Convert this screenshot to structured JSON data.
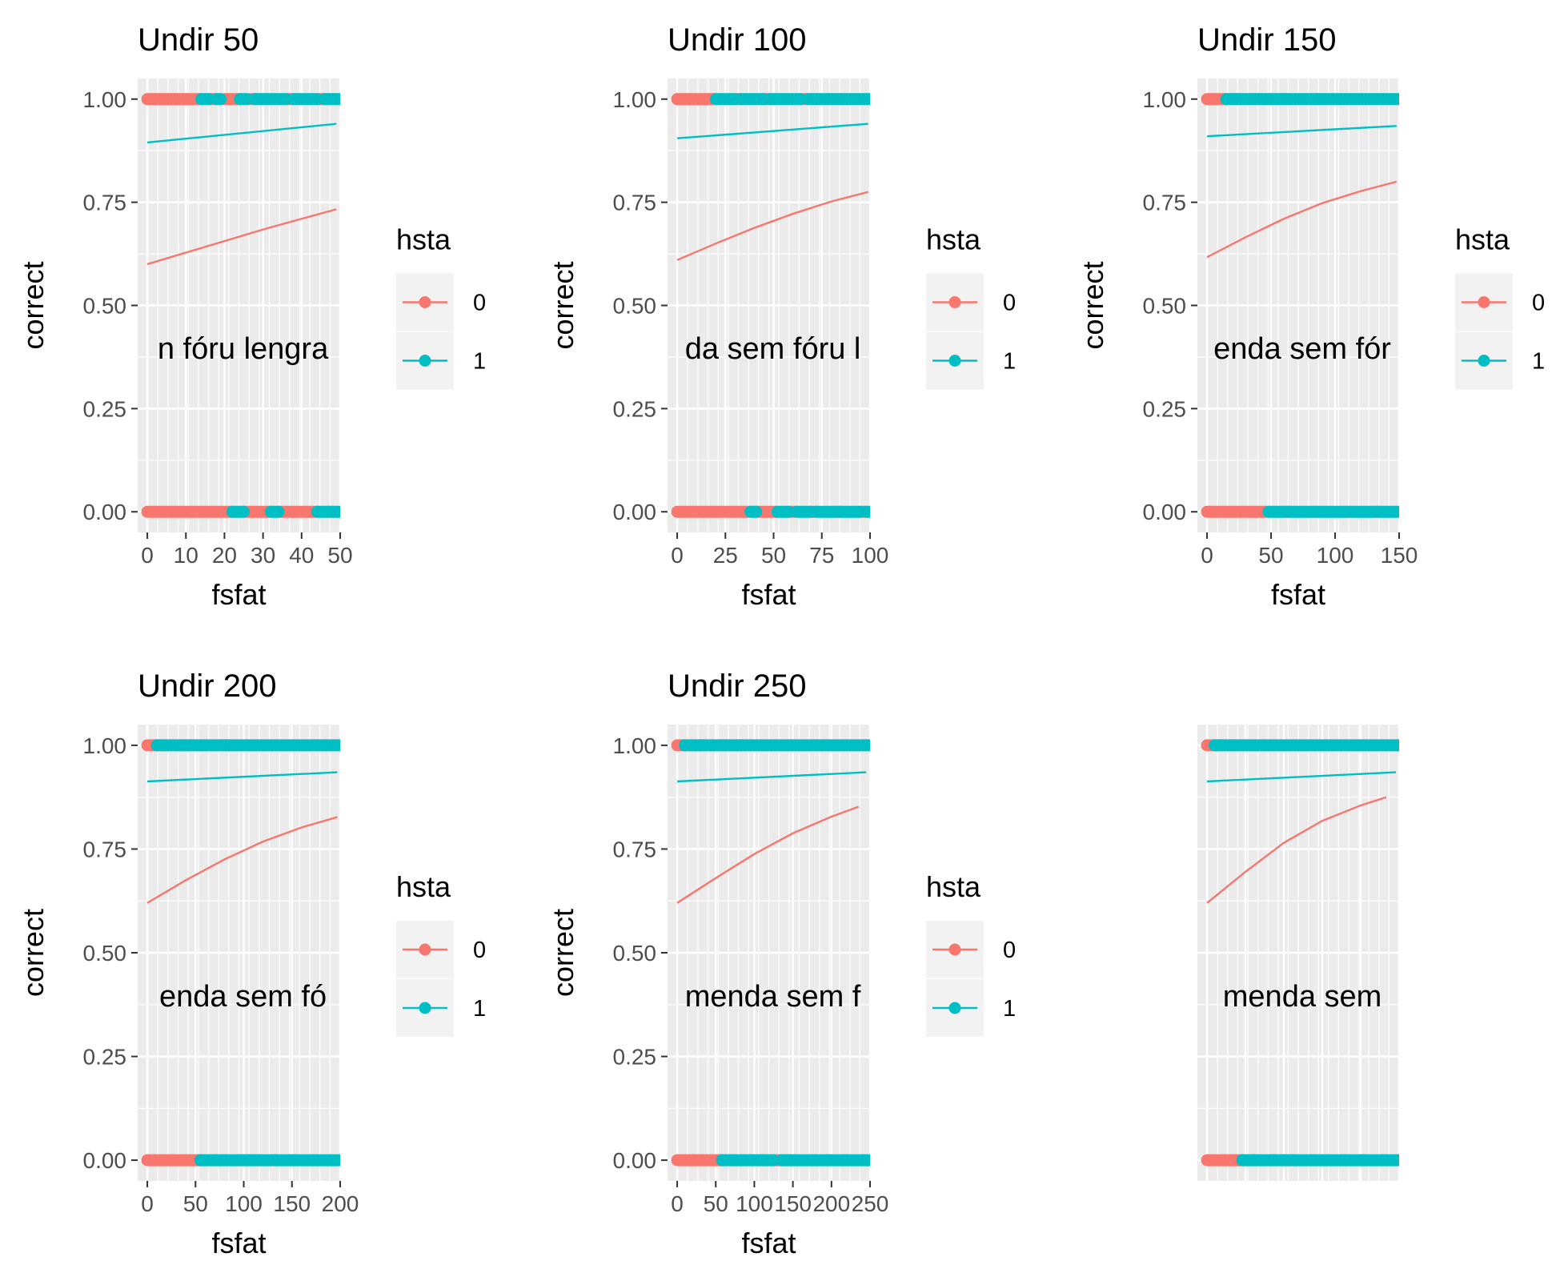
{
  "figure": {
    "background": "#ffffff",
    "panel_background": "#ebebeb",
    "grid_color": "#ffffff"
  },
  "colors": {
    "0": "#F8766D",
    "1": "#00BFC4"
  },
  "chart_data": [
    {
      "type": "scatter",
      "title": "Undir 50",
      "xlabel": "fsfat",
      "ylabel": "correct",
      "xlim": [
        -2.5,
        50
      ],
      "ylim": [
        -0.05,
        1.05
      ],
      "xticks": [
        0,
        10,
        20,
        30,
        40,
        50
      ],
      "yticks": [
        0,
        0.25,
        0.5,
        0.75,
        1
      ],
      "ytick_labels": [
        "0.00",
        "0.25",
        "0.50",
        "0.75",
        "1.00"
      ],
      "show_x_axis": true,
      "annotation": "n fóru lengra",
      "legend": {
        "title": "hsta",
        "position": "right",
        "entries": [
          "0",
          "1"
        ]
      },
      "series": [
        {
          "name": "0",
          "color": "#F8766D",
          "points_y1": [
            [
              0,
              14
            ],
            [
              16,
              18
            ],
            [
              20,
              24
            ],
            [
              27,
              28
            ],
            [
              36,
              38
            ],
            [
              44,
              46
            ]
          ],
          "points_y0": [
            [
              0,
              22
            ],
            [
              25,
              32
            ],
            [
              34,
              44
            ],
            [
              47,
              48
            ]
          ],
          "fit": {
            "x": [
              0,
              10,
              20,
              30,
              40,
              49
            ],
            "y": [
              0.6,
              0.628,
              0.656,
              0.684,
              0.71,
              0.733
            ]
          }
        },
        {
          "name": "1",
          "color": "#00BFC4",
          "points_y1": [
            [
              14,
              16
            ],
            [
              18,
              19
            ],
            [
              24,
              26
            ],
            [
              28,
              36
            ],
            [
              38,
              44
            ],
            [
              46,
              50
            ]
          ],
          "points_y0": [
            [
              22,
              25
            ],
            [
              32,
              34
            ],
            [
              44,
              47
            ],
            [
              48,
              50
            ]
          ],
          "fit": {
            "x": [
              0,
              49
            ],
            "y": [
              0.895,
              0.94
            ]
          }
        }
      ]
    },
    {
      "type": "scatter",
      "title": "Undir 100",
      "xlabel": "fsfat",
      "ylabel": "correct",
      "xlim": [
        -5,
        100
      ],
      "ylim": [
        -0.05,
        1.05
      ],
      "xticks": [
        0,
        25,
        50,
        75,
        100
      ],
      "yticks": [
        0,
        0.25,
        0.5,
        0.75,
        1
      ],
      "ytick_labels": [
        "0.00",
        "0.25",
        "0.50",
        "0.75",
        "1.00"
      ],
      "show_x_axis": true,
      "annotation": "da sem fóru l",
      "legend": {
        "title": "hsta",
        "position": "right",
        "entries": [
          "0",
          "1"
        ]
      },
      "series": [
        {
          "name": "0",
          "color": "#F8766D",
          "points_y1": [
            [
              0,
              20
            ],
            [
              30,
              33
            ],
            [
              45,
              48
            ],
            [
              64,
              68
            ],
            [
              85,
              87
            ]
          ],
          "points_y0": [
            [
              0,
              38
            ],
            [
              41,
              52
            ],
            [
              58,
              62
            ],
            [
              69,
              72
            ],
            [
              82,
              84
            ],
            [
              95,
              98
            ]
          ],
          "fit": {
            "x": [
              0,
              20,
              40,
              60,
              80,
              99
            ],
            "y": [
              0.61,
              0.65,
              0.688,
              0.722,
              0.752,
              0.775
            ]
          }
        },
        {
          "name": "1",
          "color": "#00BFC4",
          "points_y1": [
            [
              20,
              30
            ],
            [
              33,
              45
            ],
            [
              48,
              64
            ],
            [
              68,
              85
            ],
            [
              87,
              100
            ]
          ],
          "points_y0": [
            [
              38,
              41
            ],
            [
              52,
              58
            ],
            [
              62,
              69
            ],
            [
              72,
              82
            ],
            [
              84,
              95
            ],
            [
              98,
              100
            ]
          ],
          "fit": {
            "x": [
              0,
              99
            ],
            "y": [
              0.905,
              0.94
            ]
          }
        }
      ]
    },
    {
      "type": "scatter",
      "title": "Undir 150",
      "xlabel": "fsfat",
      "ylabel": "correct",
      "xlim": [
        -7.5,
        150
      ],
      "ylim": [
        -0.05,
        1.05
      ],
      "xticks": [
        0,
        50,
        100,
        150
      ],
      "yticks": [
        0,
        0.25,
        0.5,
        0.75,
        1
      ],
      "ytick_labels": [
        "0.00",
        "0.25",
        "0.50",
        "0.75",
        "1.00"
      ],
      "show_x_axis": true,
      "annotation": "enda sem fór",
      "legend": {
        "title": "hsta",
        "position": "right",
        "entries": [
          "0",
          "1"
        ]
      },
      "series": [
        {
          "name": "0",
          "color": "#F8766D",
          "points_y1": [
            [
              0,
              15
            ],
            [
              22,
              24
            ],
            [
              34,
              36
            ],
            [
              48,
              50
            ],
            [
              60,
              62
            ],
            [
              85,
              87
            ]
          ],
          "points_y0": [
            [
              0,
              48
            ],
            [
              60,
              63
            ],
            [
              83,
              86
            ],
            [
              109,
              112
            ],
            [
              130,
              133
            ]
          ],
          "fit": {
            "x": [
              0,
              30,
              60,
              90,
              120,
              148
            ],
            "y": [
              0.617,
              0.665,
              0.71,
              0.748,
              0.777,
              0.8
            ]
          }
        },
        {
          "name": "1",
          "color": "#00BFC4",
          "points_y1": [
            [
              15,
              22
            ],
            [
              24,
              34
            ],
            [
              36,
              48
            ],
            [
              50,
              60
            ],
            [
              62,
              85
            ],
            [
              87,
              150
            ]
          ],
          "points_y0": [
            [
              48,
              60
            ],
            [
              63,
              83
            ],
            [
              86,
              109
            ],
            [
              112,
              130
            ],
            [
              133,
              150
            ]
          ],
          "fit": {
            "x": [
              0,
              148
            ],
            "y": [
              0.91,
              0.935
            ]
          }
        }
      ]
    },
    {
      "type": "scatter",
      "title": "Undir 200",
      "xlabel": "fsfat",
      "ylabel": "correct",
      "xlim": [
        -10,
        200
      ],
      "ylim": [
        -0.05,
        1.05
      ],
      "xticks": [
        0,
        50,
        100,
        150,
        200
      ],
      "yticks": [
        0,
        0.25,
        0.5,
        0.75,
        1
      ],
      "ytick_labels": [
        "0.00",
        "0.25",
        "0.50",
        "0.75",
        "1.00"
      ],
      "show_x_axis": true,
      "annotation": "enda sem fó",
      "legend": {
        "title": "hsta",
        "position": "right",
        "entries": [
          "0",
          "1"
        ]
      },
      "series": [
        {
          "name": "0",
          "color": "#F8766D",
          "points_y1": [
            [
              0,
              10
            ],
            [
              16,
              19
            ],
            [
              40,
              43
            ],
            [
              56,
              58
            ],
            [
              82,
              85
            ]
          ],
          "points_y0": [
            [
              0,
              55
            ],
            [
              70,
              72
            ],
            [
              95,
              98
            ],
            [
              113,
              116
            ],
            [
              128,
              132
            ]
          ],
          "fit": {
            "x": [
              0,
              40,
              80,
              120,
              160,
              197
            ],
            "y": [
              0.62,
              0.675,
              0.725,
              0.768,
              0.802,
              0.827
            ]
          }
        },
        {
          "name": "1",
          "color": "#00BFC4",
          "points_y1": [
            [
              10,
              16
            ],
            [
              19,
              40
            ],
            [
              43,
              56
            ],
            [
              58,
              82
            ],
            [
              85,
              200
            ]
          ],
          "points_y0": [
            [
              55,
              70
            ],
            [
              72,
              95
            ],
            [
              98,
              113
            ],
            [
              116,
              128
            ],
            [
              132,
              200
            ]
          ],
          "fit": {
            "x": [
              0,
              197
            ],
            "y": [
              0.913,
              0.935
            ]
          }
        }
      ]
    },
    {
      "type": "scatter",
      "title": "Undir 250",
      "xlabel": "fsfat",
      "ylabel": "correct",
      "xlim": [
        -12.5,
        250
      ],
      "ylim": [
        -0.05,
        1.05
      ],
      "xticks": [
        0,
        50,
        100,
        150,
        200,
        250
      ],
      "yticks": [
        0,
        0.25,
        0.5,
        0.75,
        1
      ],
      "ytick_labels": [
        "0.00",
        "0.25",
        "0.50",
        "0.75",
        "1.00"
      ],
      "show_x_axis": true,
      "annotation": "menda sem f",
      "legend": {
        "title": "hsta",
        "position": "right",
        "entries": [
          "0",
          "1"
        ]
      },
      "series": [
        {
          "name": "0",
          "color": "#F8766D",
          "points_y1": [
            [
              0,
              10
            ],
            [
              16,
              19
            ],
            [
              30,
              32
            ],
            [
              60,
              63
            ],
            [
              80,
              83
            ]
          ],
          "points_y0": [
            [
              0,
              58
            ],
            [
              70,
              74
            ],
            [
              95,
              98
            ],
            [
              108,
              112
            ],
            [
              125,
              135
            ]
          ],
          "fit": {
            "x": [
              0,
              50,
              100,
              150,
              200,
              235
            ],
            "y": [
              0.62,
              0.68,
              0.738,
              0.788,
              0.828,
              0.852
            ]
          }
        },
        {
          "name": "1",
          "color": "#00BFC4",
          "points_y1": [
            [
              10,
              16
            ],
            [
              19,
              30
            ],
            [
              32,
              60
            ],
            [
              63,
              80
            ],
            [
              83,
              250
            ]
          ],
          "points_y0": [
            [
              58,
              70
            ],
            [
              74,
              95
            ],
            [
              98,
              108
            ],
            [
              112,
              125
            ],
            [
              135,
              250
            ]
          ],
          "fit": {
            "x": [
              0,
              245
            ],
            "y": [
              0.913,
              0.935
            ]
          }
        }
      ]
    },
    {
      "type": "scatter",
      "title": "",
      "xlabel": "",
      "ylabel": "",
      "xlim": [
        -15,
        300
      ],
      "ylim": [
        -0.05,
        1.05
      ],
      "xticks": [],
      "yticks": [],
      "ytick_labels": [],
      "show_x_axis": false,
      "annotation": "menda sem",
      "legend": null,
      "series": [
        {
          "name": "0",
          "color": "#F8766D",
          "points_y1": [
            [
              0,
              12
            ],
            [
              20,
              23
            ],
            [
              40,
              42
            ],
            [
              75,
              78
            ]
          ],
          "points_y0": [
            [
              0,
              55
            ],
            [
              72,
              75
            ],
            [
              100,
              104
            ],
            [
              118,
              122
            ],
            [
              130,
              135
            ]
          ],
          "fit": {
            "x": [
              0,
              60,
              120,
              180,
              240,
              280
            ],
            "y": [
              0.62,
              0.695,
              0.765,
              0.818,
              0.855,
              0.875
            ]
          }
        },
        {
          "name": "1",
          "color": "#00BFC4",
          "points_y1": [
            [
              12,
              20
            ],
            [
              23,
              40
            ],
            [
              42,
              75
            ],
            [
              78,
              300
            ]
          ],
          "points_y0": [
            [
              55,
              72
            ],
            [
              75,
              100
            ],
            [
              104,
              118
            ],
            [
              122,
              130
            ],
            [
              135,
              300
            ]
          ],
          "fit": {
            "x": [
              0,
              295
            ],
            "y": [
              0.913,
              0.935
            ]
          }
        }
      ]
    }
  ]
}
